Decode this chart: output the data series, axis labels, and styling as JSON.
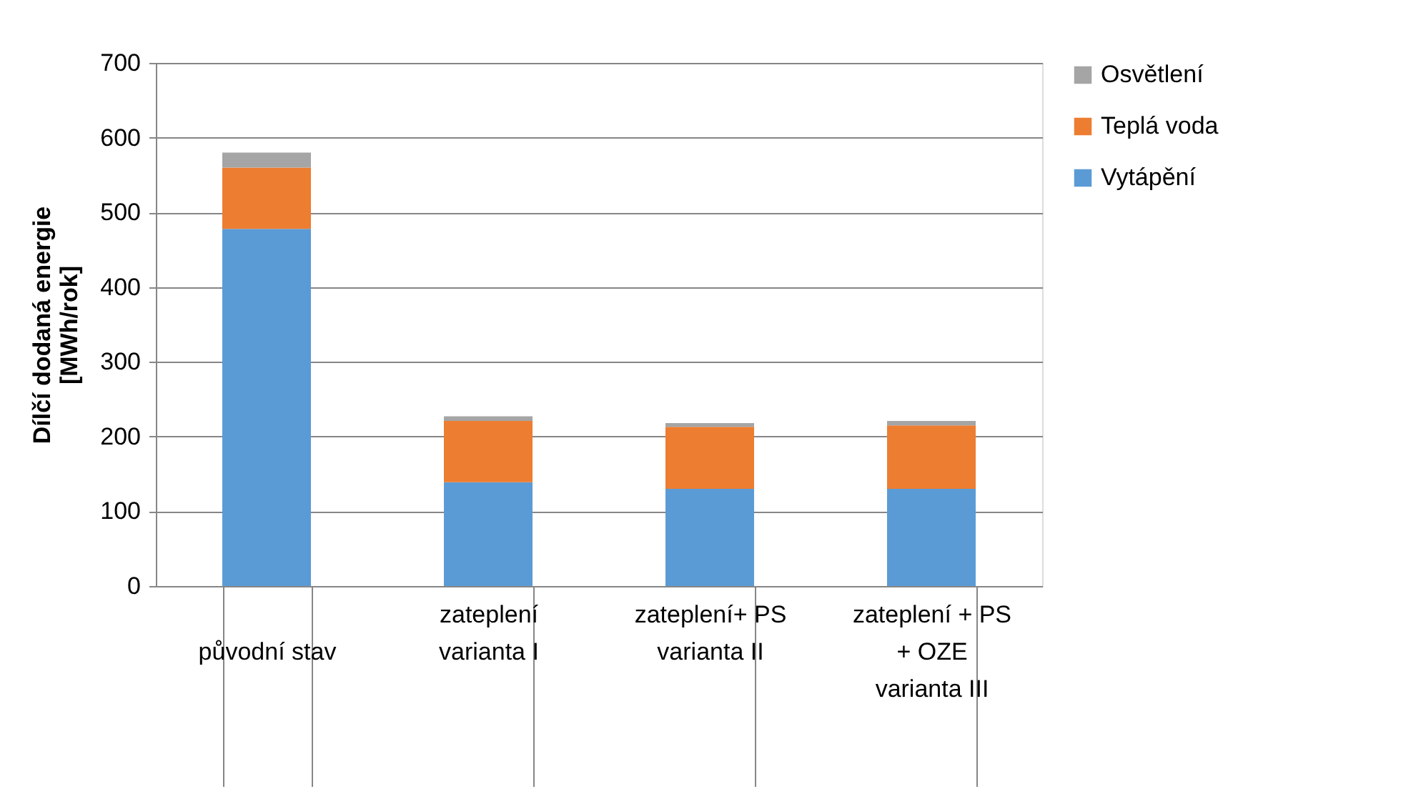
{
  "chart_data": {
    "type": "bar",
    "stacked": true,
    "ylabel": "Dílčí dodaná energie\n[MWh/rok]",
    "categories": [
      "původní stav",
      "zateplení\nvarianta I",
      "zateplení+ PS\nvarianta II",
      "zateplení + PS\n+ OZE\nvarianta III"
    ],
    "series": [
      {
        "name": "Vytápění",
        "color": "#5b9bd5",
        "values": [
          478,
          139,
          130,
          130
        ]
      },
      {
        "name": "Teplá voda",
        "color": "#ed7d31",
        "values": [
          82,
          82,
          83,
          85
        ]
      },
      {
        "name": "Osvětlení",
        "color": "#a5a5a5",
        "values": [
          20,
          6,
          5,
          6
        ]
      }
    ],
    "ylim": [
      0,
      700
    ],
    "yticks": [
      0,
      100,
      200,
      300,
      400,
      500,
      600,
      700
    ],
    "grid": "y",
    "legend": "right"
  }
}
